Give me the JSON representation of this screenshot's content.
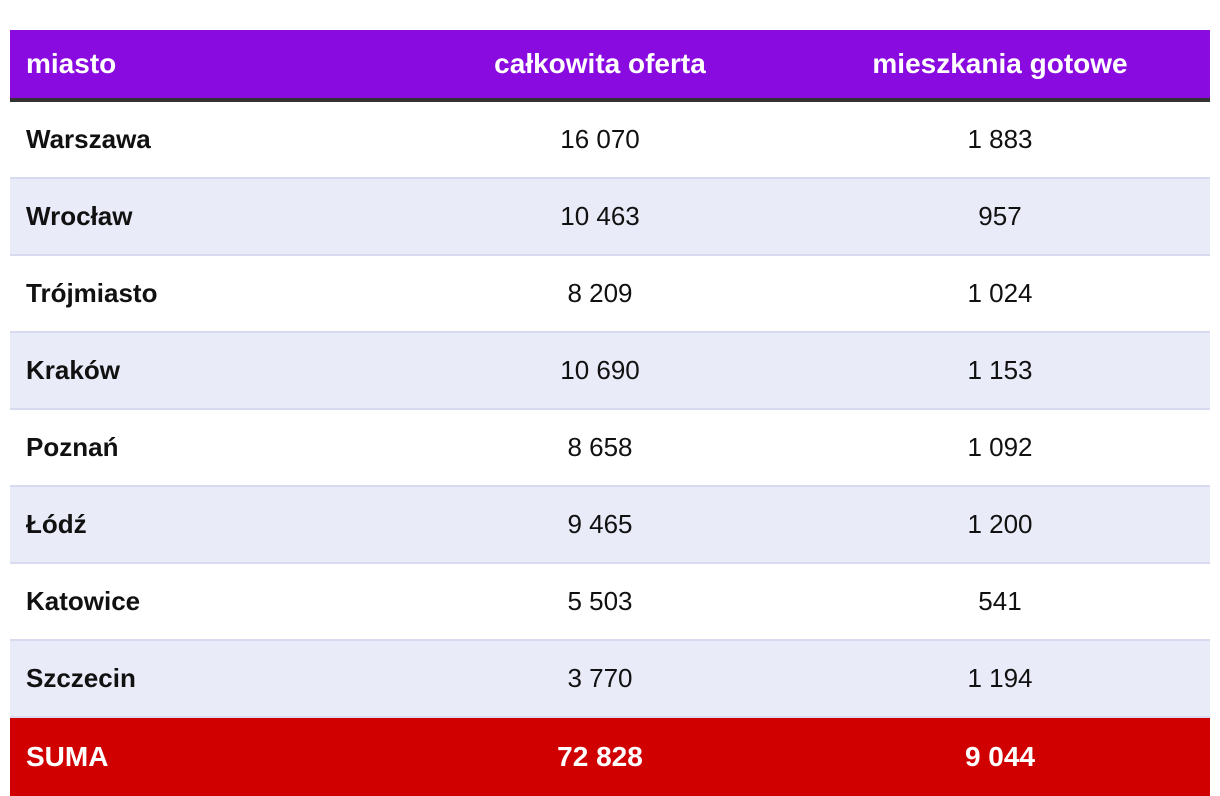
{
  "chart_data": {
    "type": "table",
    "columns": [
      "miasto",
      "całkowita oferta",
      "mieszkania gotowe"
    ],
    "rows": [
      {
        "city": "Warszawa",
        "total": "16 070",
        "ready": "1 883"
      },
      {
        "city": "Wrocław",
        "total": "10 463",
        "ready": "957"
      },
      {
        "city": "Trójmiasto",
        "total": "8 209",
        "ready": "1 024"
      },
      {
        "city": "Kraków",
        "total": "10 690",
        "ready": "1 153"
      },
      {
        "city": "Poznań",
        "total": "8 658",
        "ready": "1 092"
      },
      {
        "city": "Łódź",
        "total": "9 465",
        "ready": "1 200"
      },
      {
        "city": "Katowice",
        "total": "5 503",
        "ready": "541"
      },
      {
        "city": "Szczecin",
        "total": "3 770",
        "ready": "1 194"
      }
    ],
    "summary": {
      "label": "SUMA",
      "total": "72 828",
      "ready": "9 044"
    }
  },
  "colors": {
    "header_bg": "#8a0be0",
    "header_rule": "#333333",
    "row_alt_bg": "#e9ebf8",
    "summary_bg": "#d10000"
  }
}
